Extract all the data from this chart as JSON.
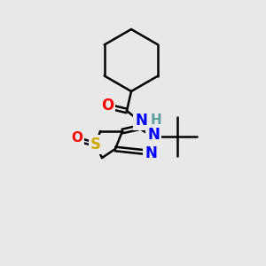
{
  "background_color": "#e8e8e8",
  "bond_color": "#000000",
  "atom_colors": {
    "O": "#ff0000",
    "N": "#0000ff",
    "S": "#ccaa00",
    "H": "#5f9ea0",
    "C": "#000000"
  },
  "figsize": [
    3.0,
    3.0
  ],
  "dpi": 100
}
